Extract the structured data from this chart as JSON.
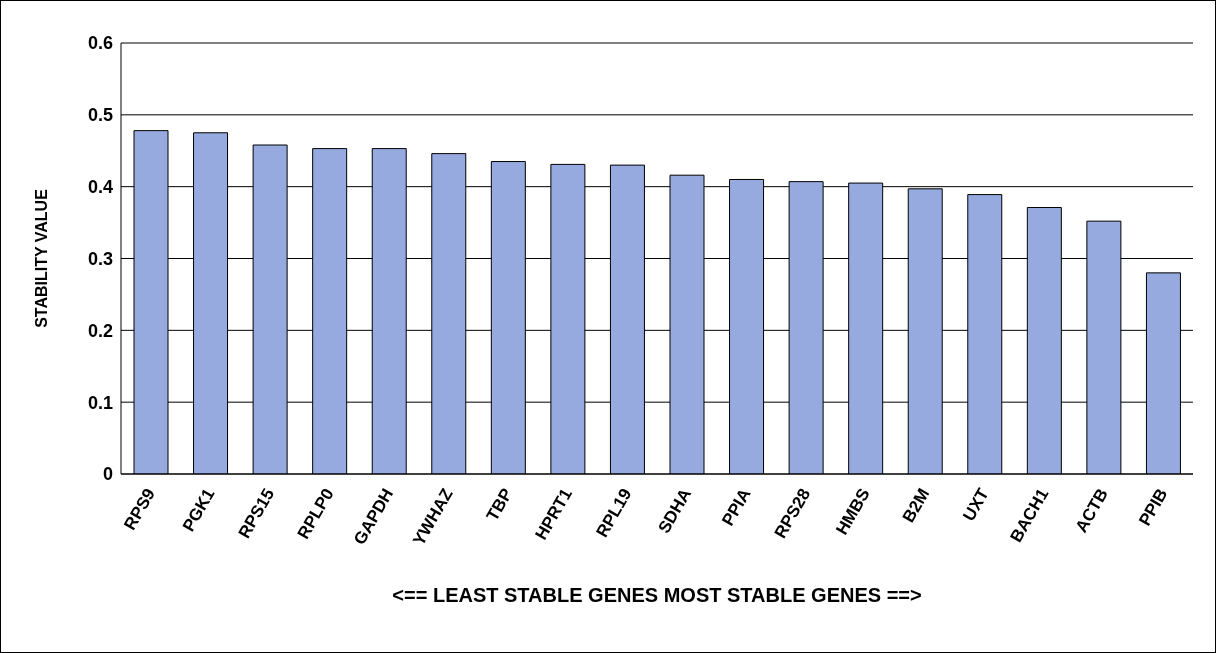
{
  "chart_data": {
    "type": "bar",
    "ylabel": "STABILITY  VALUE",
    "xlabel": "<==  LEAST STABLE  GENES        MOST STABLE GENES     ==>",
    "categories": [
      "RPS9",
      "PGK1",
      "RPS15",
      "RPLP0",
      "GAPDH",
      "YWHAZ",
      "TBP",
      "HPRT1",
      "RPL19",
      "SDHA",
      "PPIA",
      "RPS28",
      "HMBS",
      "B2M",
      "UXT",
      "BACH1",
      "ACTB",
      "PPIB"
    ],
    "values": [
      0.478,
      0.475,
      0.458,
      0.453,
      0.453,
      0.446,
      0.435,
      0.431,
      0.43,
      0.416,
      0.41,
      0.407,
      0.405,
      0.397,
      0.389,
      0.371,
      0.352,
      0.28
    ],
    "color": "#97aadf",
    "ylim": [
      0,
      0.6
    ],
    "yticks": [
      0,
      0.1,
      0.2,
      0.3,
      0.4,
      0.5,
      0.6
    ],
    "grid": "y",
    "legend": false
  }
}
